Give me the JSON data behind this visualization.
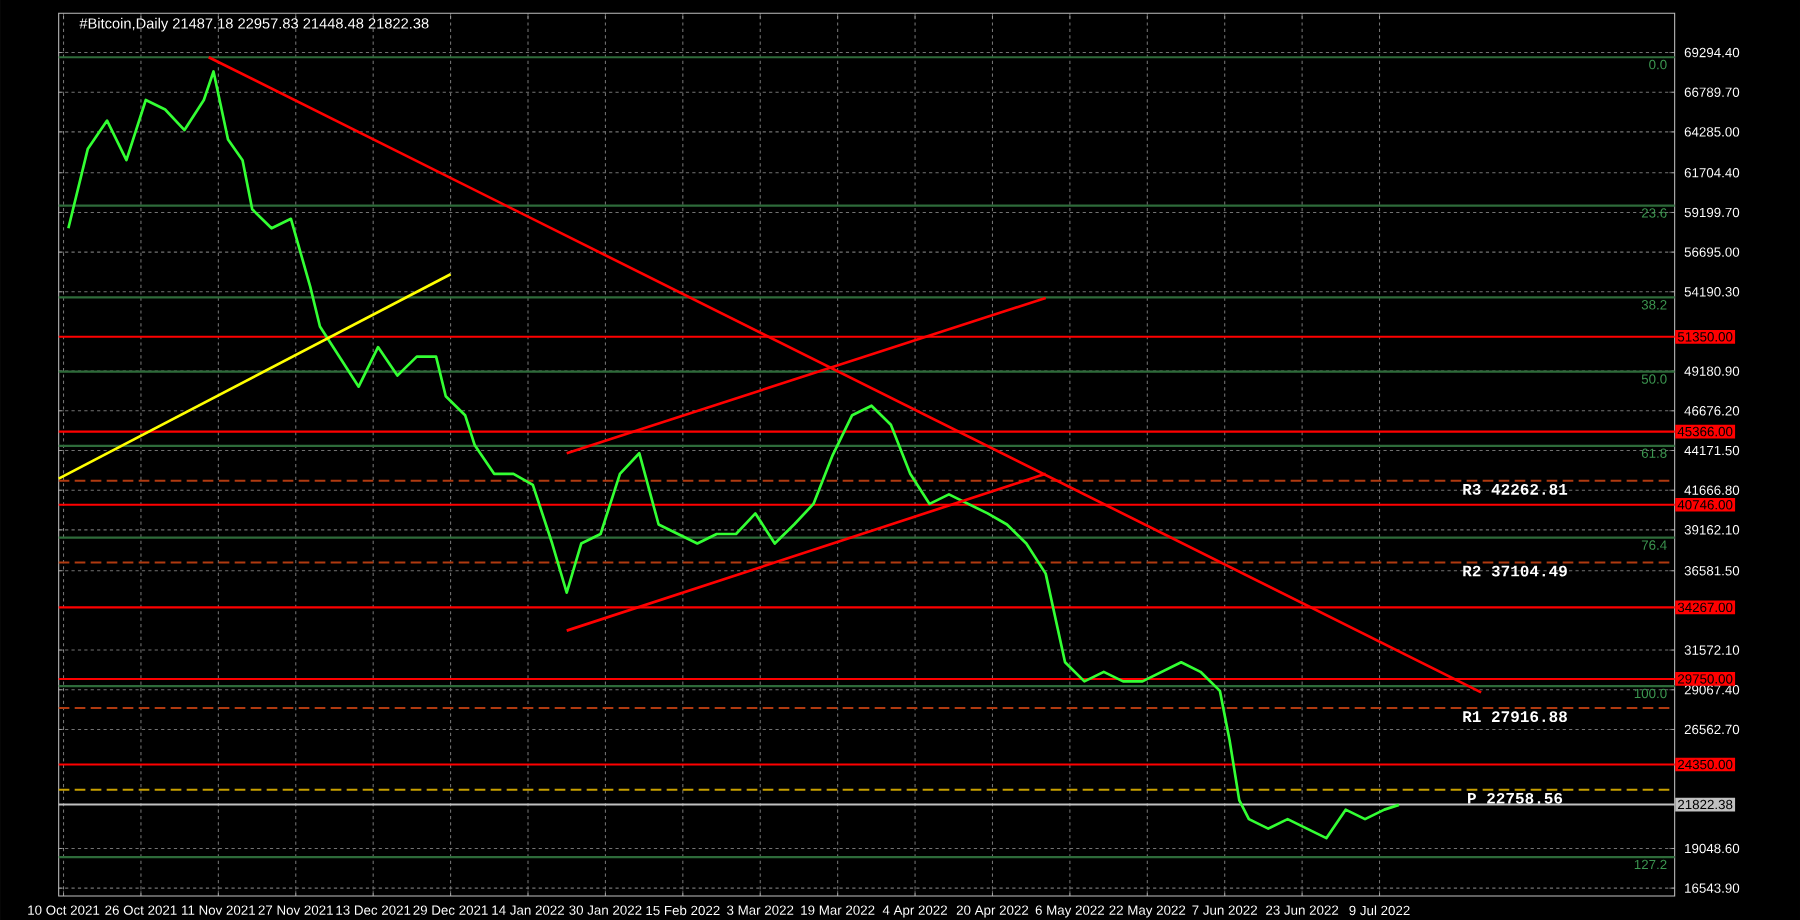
{
  "chart_data": {
    "type": "line",
    "title": "#Bitcoin,Daily  21487.18 22957.83 21448.48 21822.38",
    "xlim": [
      "2021-10-09",
      "2022-09-08"
    ],
    "ylim": [
      16050,
      71770
    ],
    "xticks": [
      {
        "value": "2021-10-10",
        "label": "10 Oct 2021"
      },
      {
        "value": "2021-10-26",
        "label": "26 Oct 2021"
      },
      {
        "value": "2021-11-11",
        "label": "11 Nov 2021"
      },
      {
        "value": "2021-11-27",
        "label": "27 Nov 2021"
      },
      {
        "value": "2021-12-13",
        "label": "13 Dec 2021"
      },
      {
        "value": "2021-12-29",
        "label": "29 Dec 2021"
      },
      {
        "value": "2022-01-14",
        "label": "14 Jan 2022"
      },
      {
        "value": "2022-01-30",
        "label": "30 Jan 2022"
      },
      {
        "value": "2022-02-15",
        "label": "15 Feb 2022"
      },
      {
        "value": "2022-03-03",
        "label": "3 Mar 2022"
      },
      {
        "value": "2022-03-19",
        "label": "19 Mar 2022"
      },
      {
        "value": "2022-04-04",
        "label": "4 Apr 2022"
      },
      {
        "value": "2022-04-20",
        "label": "20 Apr 2022"
      },
      {
        "value": "2022-05-06",
        "label": "6 May 2022"
      },
      {
        "value": "2022-05-22",
        "label": "22 May 2022"
      },
      {
        "value": "2022-06-07",
        "label": "7 Jun 2022"
      },
      {
        "value": "2022-06-23",
        "label": "23 Jun 2022"
      },
      {
        "value": "2022-07-09",
        "label": "9 Jul 2022"
      }
    ],
    "yticks": [
      {
        "value": 69294.4,
        "label": "69294.40"
      },
      {
        "value": 66789.7,
        "label": "66789.70"
      },
      {
        "value": 64285,
        "label": "64285.00"
      },
      {
        "value": 61704.4,
        "label": "61704.40"
      },
      {
        "value": 59199.7,
        "label": "59199.70"
      },
      {
        "value": 56695,
        "label": "56695.00"
      },
      {
        "value": 54190.3,
        "label": "54190.30"
      },
      {
        "value": 49180.9,
        "label": "49180.90"
      },
      {
        "value": 46676.2,
        "label": "46676.20"
      },
      {
        "value": 44171.5,
        "label": "44171.50"
      },
      {
        "value": 41666.8,
        "label": "41666.80"
      },
      {
        "value": 39162.1,
        "label": "39162.10"
      },
      {
        "value": 36581.5,
        "label": "36581.50"
      },
      {
        "value": 31572.1,
        "label": "31572.10"
      },
      {
        "value": 29067.4,
        "label": "29067.40"
      },
      {
        "value": 26562.7,
        "label": "26562.70"
      },
      {
        "value": 19048.6,
        "label": "19048.60"
      },
      {
        "value": 16543.9,
        "label": "16543.90"
      }
    ],
    "grid": true,
    "series": [
      {
        "color": "#33ff33",
        "x": [
          "2021-10-11",
          "2021-10-15",
          "2021-10-19",
          "2021-10-23",
          "2021-10-27",
          "2021-10-31",
          "2021-11-04",
          "2021-11-08",
          "2021-11-10",
          "2021-11-13",
          "2021-11-16",
          "2021-11-18",
          "2021-11-22",
          "2021-11-26",
          "2021-11-30",
          "2021-12-02",
          "2021-12-06",
          "2021-12-10",
          "2021-12-14",
          "2021-12-18",
          "2021-12-22",
          "2021-12-26",
          "2021-12-28",
          "2022-01-01",
          "2022-01-03",
          "2022-01-07",
          "2022-01-11",
          "2022-01-15",
          "2022-01-19",
          "2022-01-22",
          "2022-01-25",
          "2022-01-29",
          "2022-02-02",
          "2022-02-06",
          "2022-02-10",
          "2022-02-14",
          "2022-02-18",
          "2022-02-22",
          "2022-02-26",
          "2022-03-02",
          "2022-03-06",
          "2022-03-10",
          "2022-03-14",
          "2022-03-18",
          "2022-03-22",
          "2022-03-26",
          "2022-03-30",
          "2022-04-03",
          "2022-04-07",
          "2022-04-11",
          "2022-04-15",
          "2022-04-19",
          "2022-04-23",
          "2022-04-27",
          "2022-05-01",
          "2022-05-05",
          "2022-05-09",
          "2022-05-13",
          "2022-05-17",
          "2022-05-21",
          "2022-05-25",
          "2022-05-29",
          "2022-06-02",
          "2022-06-06",
          "2022-06-08",
          "2022-06-10",
          "2022-06-12",
          "2022-06-16",
          "2022-06-20",
          "2022-06-24",
          "2022-06-28",
          "2022-07-02",
          "2022-07-06",
          "2022-07-10",
          "2022-07-13"
        ],
        "values": [
          58200,
          63200,
          65000,
          62500,
          66300,
          65700,
          64400,
          66300,
          68100,
          63800,
          62500,
          59400,
          58200,
          58800,
          54500,
          52000,
          50100,
          48200,
          50700,
          48900,
          50100,
          50100,
          47600,
          46400,
          44500,
          42700,
          42700,
          42000,
          38300,
          35200,
          38300,
          38900,
          42700,
          44000,
          39500,
          38900,
          38300,
          38900,
          38900,
          40200,
          38300,
          39500,
          40800,
          43900,
          46400,
          47000,
          45800,
          42700,
          40800,
          41400,
          40800,
          40200,
          39500,
          38300,
          36400,
          30800,
          29600,
          30200,
          29600,
          29600,
          30200,
          30800,
          30200,
          29000,
          25900,
          22100,
          20900,
          20300,
          20900,
          20300,
          19700,
          21500,
          20900,
          21500,
          21800
        ]
      },
      {
        "color": "#ff0000",
        "x": [
          "2021-11-09",
          "2022-07-30"
        ],
        "values": [
          69000,
          28900
        ]
      },
      {
        "color": "#ff0000",
        "x": [
          "2022-01-22",
          "2022-05-01"
        ],
        "values": [
          44000,
          53800
        ]
      },
      {
        "color": "#ff0000",
        "x": [
          "2022-01-22",
          "2022-05-01"
        ],
        "values": [
          32800,
          42700
        ]
      },
      {
        "color": "#ffff00",
        "x": [
          "2021-10-09",
          "2021-12-29"
        ],
        "values": [
          42400,
          55300
        ]
      }
    ],
    "ref_lines": [
      {
        "axis": "y",
        "value": 69000,
        "color": "#2e6b3a"
      },
      {
        "axis": "y",
        "value": 59631,
        "color": "#2e6b3a"
      },
      {
        "axis": "y",
        "value": 53835,
        "color": "#2e6b3a"
      },
      {
        "axis": "y",
        "value": 49150,
        "color": "#2e6b3a"
      },
      {
        "axis": "y",
        "value": 44465,
        "color": "#2e6b3a"
      },
      {
        "axis": "y",
        "value": 38669,
        "color": "#2e6b3a"
      },
      {
        "axis": "y",
        "value": 29300,
        "color": "#2e6b3a"
      },
      {
        "axis": "y",
        "value": 18502,
        "color": "#2e6b3a"
      },
      {
        "axis": "y",
        "value": 51350,
        "label": "51350.00",
        "color": "#ff0000"
      },
      {
        "axis": "y",
        "value": 45366,
        "label": "45366.00",
        "color": "#ff0000"
      },
      {
        "axis": "y",
        "value": 40746,
        "label": "40746.00",
        "color": "#ff0000"
      },
      {
        "axis": "y",
        "value": 34267,
        "label": "34267.00",
        "color": "#ff0000"
      },
      {
        "axis": "y",
        "value": 29750,
        "label": "29750.00",
        "color": "#ff0000"
      },
      {
        "axis": "y",
        "value": 24350,
        "label": "24350.00",
        "color": "#ff0000"
      },
      {
        "axis": "y",
        "value": 21822.38,
        "label": "21822.38",
        "color": "#c0c0c0"
      },
      {
        "axis": "y",
        "value": 42262.81,
        "label": "R3 42262.81",
        "color": "#b03a10",
        "line_style": "dashed"
      },
      {
        "axis": "y",
        "value": 37104.49,
        "label": "R2 37104.49",
        "color": "#b03a10",
        "line_style": "dashed"
      },
      {
        "axis": "y",
        "value": 27916.88,
        "label": "R1 27916.88",
        "color": "#b03a10",
        "line_style": "dashed"
      },
      {
        "axis": "y",
        "value": 22758.56,
        "label": "P 22758.56",
        "color": "#c8a000",
        "line_style": "dashed"
      }
    ],
    "annotations": [
      {
        "text": "0.0",
        "x": "2022-09-07",
        "y": 69000
      },
      {
        "text": "23.6",
        "x": "2022-09-07",
        "y": 59631
      },
      {
        "text": "38.2",
        "x": "2022-09-07",
        "y": 53835
      },
      {
        "text": "50.0",
        "x": "2022-09-07",
        "y": 49150
      },
      {
        "text": "61.8",
        "x": "2022-09-07",
        "y": 44465
      },
      {
        "text": "76.4",
        "x": "2022-09-07",
        "y": 38669
      },
      {
        "text": "100.0",
        "x": "2022-09-07",
        "y": 29300
      },
      {
        "text": "127.2",
        "x": "2022-09-07",
        "y": 18502
      }
    ]
  }
}
